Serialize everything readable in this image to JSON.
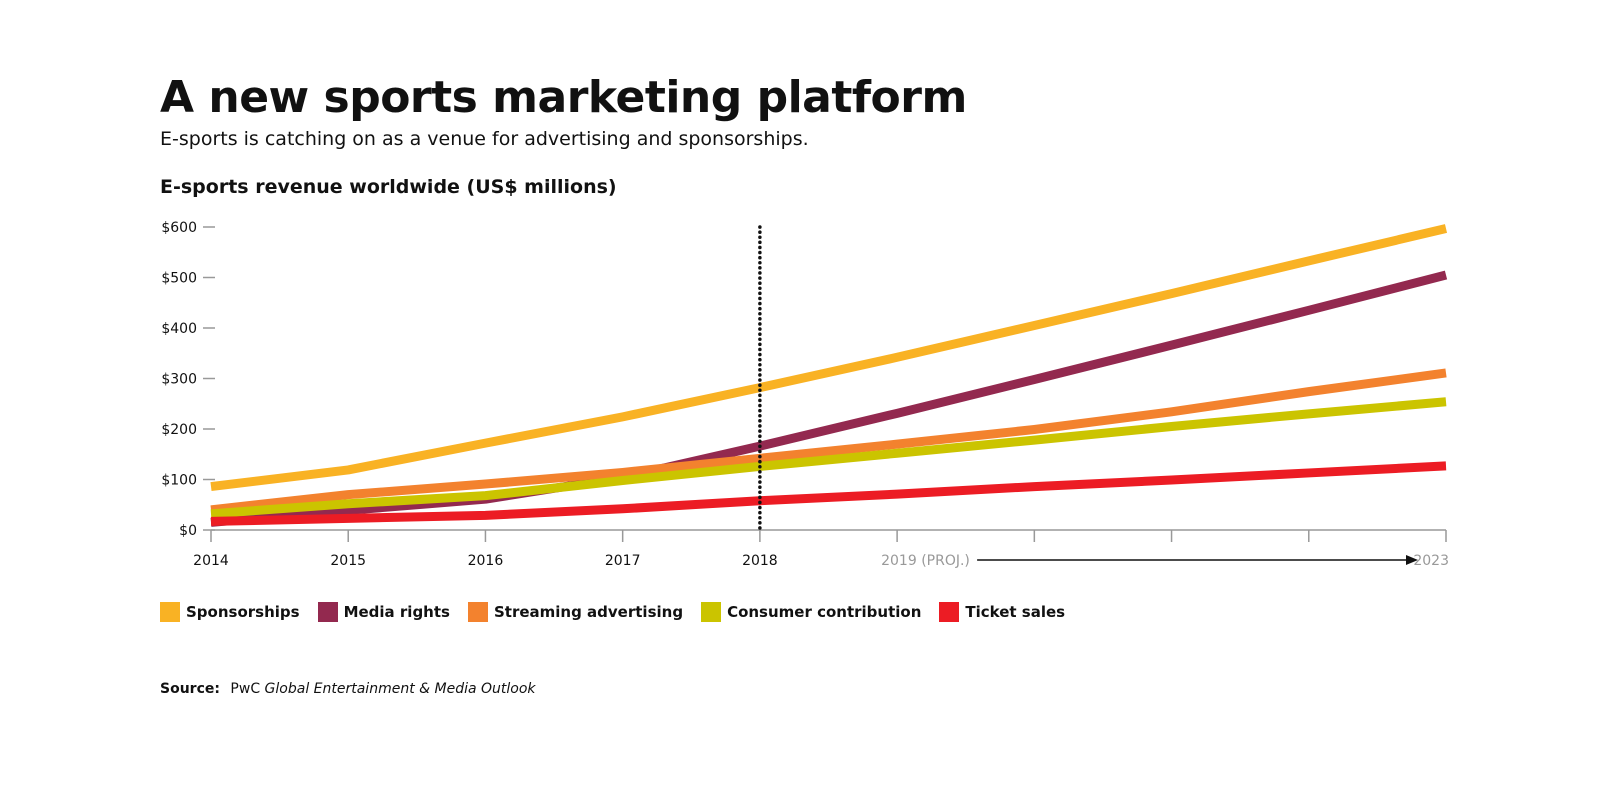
{
  "header": {
    "title": "A new sports marketing platform",
    "subtitle": "E-sports is catching on as a venue for advertising and sponsorships."
  },
  "chart_data": {
    "type": "line",
    "title": "E-sports revenue worldwide (US$ millions)",
    "xlabel": "",
    "ylabel": "",
    "x": [
      2014,
      2015,
      2016,
      2017,
      2018,
      2019,
      2020,
      2021,
      2022,
      2023
    ],
    "x_tick_labels": [
      "2014",
      "2015",
      "2016",
      "2017",
      "2018",
      "2019 (PROJ.)",
      "",
      "",
      "",
      "2023"
    ],
    "ylim": [
      0,
      600
    ],
    "y_ticks": [
      0,
      100,
      200,
      300,
      400,
      500,
      600
    ],
    "y_tick_labels": [
      "$0",
      "$100",
      "$200",
      "$300",
      "$400",
      "$500",
      "$600"
    ],
    "projection_start": 2018,
    "grid": false,
    "legend_position": "bottom-left",
    "series": [
      {
        "name": "Sponsorships",
        "color": "#F9B224",
        "values": [
          86,
          119,
          172,
          224,
          282,
          342,
          405,
          468,
          533,
          597
        ]
      },
      {
        "name": "Media rights",
        "color": "#93294F",
        "values": [
          15,
          39,
          61,
          104,
          166,
          231,
          298,
          366,
          435,
          505
        ]
      },
      {
        "name": "Streaming advertising",
        "color": "#F3822E",
        "values": [
          40,
          70,
          91,
          114,
          142,
          170,
          199,
          234,
          274,
          311
        ]
      },
      {
        "name": "Consumer contribution",
        "color": "#CBC400",
        "values": [
          32,
          52,
          68,
          98,
          126,
          152,
          178,
          205,
          230,
          254
        ]
      },
      {
        "name": "Ticket sales",
        "color": "#EC1C24",
        "values": [
          17,
          23,
          29,
          42,
          58,
          71,
          86,
          99,
          113,
          127
        ]
      }
    ]
  },
  "legend": {
    "items": [
      {
        "label": "Sponsorships",
        "color": "#F9B224"
      },
      {
        "label": "Media rights",
        "color": "#93294F"
      },
      {
        "label": "Streaming advertising",
        "color": "#F3822E"
      },
      {
        "label": "Consumer contribution",
        "color": "#CBC400"
      },
      {
        "label": "Ticket sales",
        "color": "#EC1C24"
      }
    ]
  },
  "source": {
    "label": "Source:",
    "org": "PwC",
    "publication": "Global Entertainment & Media Outlook"
  }
}
